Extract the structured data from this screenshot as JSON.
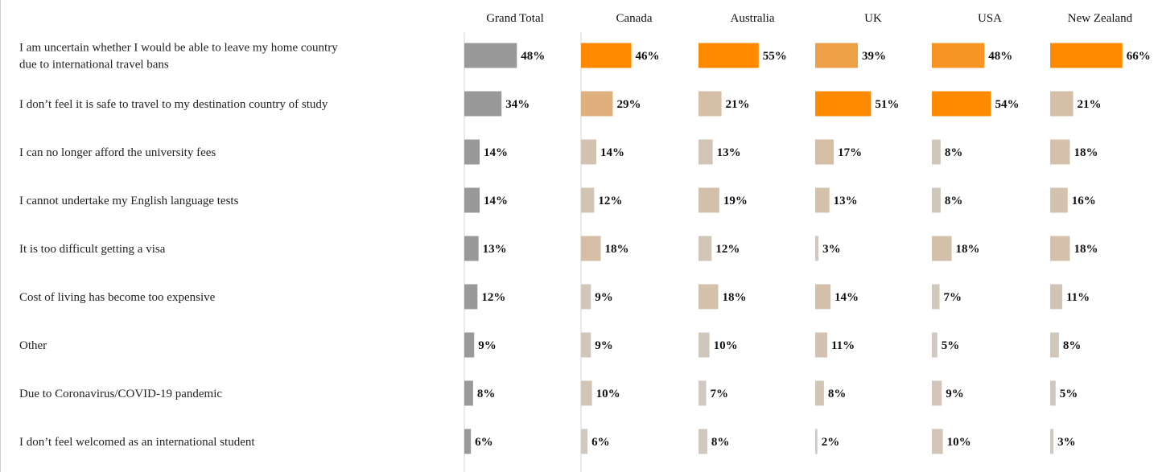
{
  "chart_data": {
    "type": "bar",
    "orientation": "horizontal",
    "grid": false,
    "columns": [
      "Grand Total",
      "Canada",
      "Australia",
      "UK",
      "USA",
      "New Zealand"
    ],
    "categories": [
      [
        "I am uncertain whether I would be able to leave my home country",
        "due to international travel bans"
      ],
      [
        "I don’t feel it is safe to travel to my destination country of study"
      ],
      [
        "I can no longer afford the university fees"
      ],
      [
        "I cannot undertake my English language tests"
      ],
      [
        "It is too difficult getting a visa"
      ],
      [
        "Cost of living has become too expensive"
      ],
      [
        "Other"
      ],
      [
        "Due to Coronavirus/COVID-19 pandemic"
      ],
      [
        "I don’t feel welcomed as an international student"
      ]
    ],
    "series": [
      {
        "name": "Grand Total",
        "values": [
          48,
          34,
          14,
          14,
          13,
          12,
          9,
          8,
          6
        ]
      },
      {
        "name": "Canada",
        "values": [
          46,
          29,
          14,
          12,
          18,
          9,
          9,
          10,
          6
        ]
      },
      {
        "name": "Australia",
        "values": [
          55,
          21,
          13,
          19,
          12,
          18,
          10,
          7,
          8
        ]
      },
      {
        "name": "UK",
        "values": [
          39,
          51,
          17,
          13,
          3,
          14,
          11,
          8,
          2
        ]
      },
      {
        "name": "USA",
        "values": [
          48,
          54,
          8,
          8,
          18,
          7,
          5,
          9,
          10
        ]
      },
      {
        "name": "New Zealand",
        "values": [
          66,
          21,
          18,
          16,
          18,
          11,
          8,
          5,
          3
        ]
      }
    ],
    "value_suffix": "%",
    "xlim": [
      0,
      66
    ],
    "colors": {
      "grand_total": "#999999",
      "heat_low": "#cfc9c1",
      "heat_mid": "#d9b793",
      "heat_high": "#ff8a00",
      "divider": "#d5d5d5",
      "text": "#222222"
    }
  }
}
